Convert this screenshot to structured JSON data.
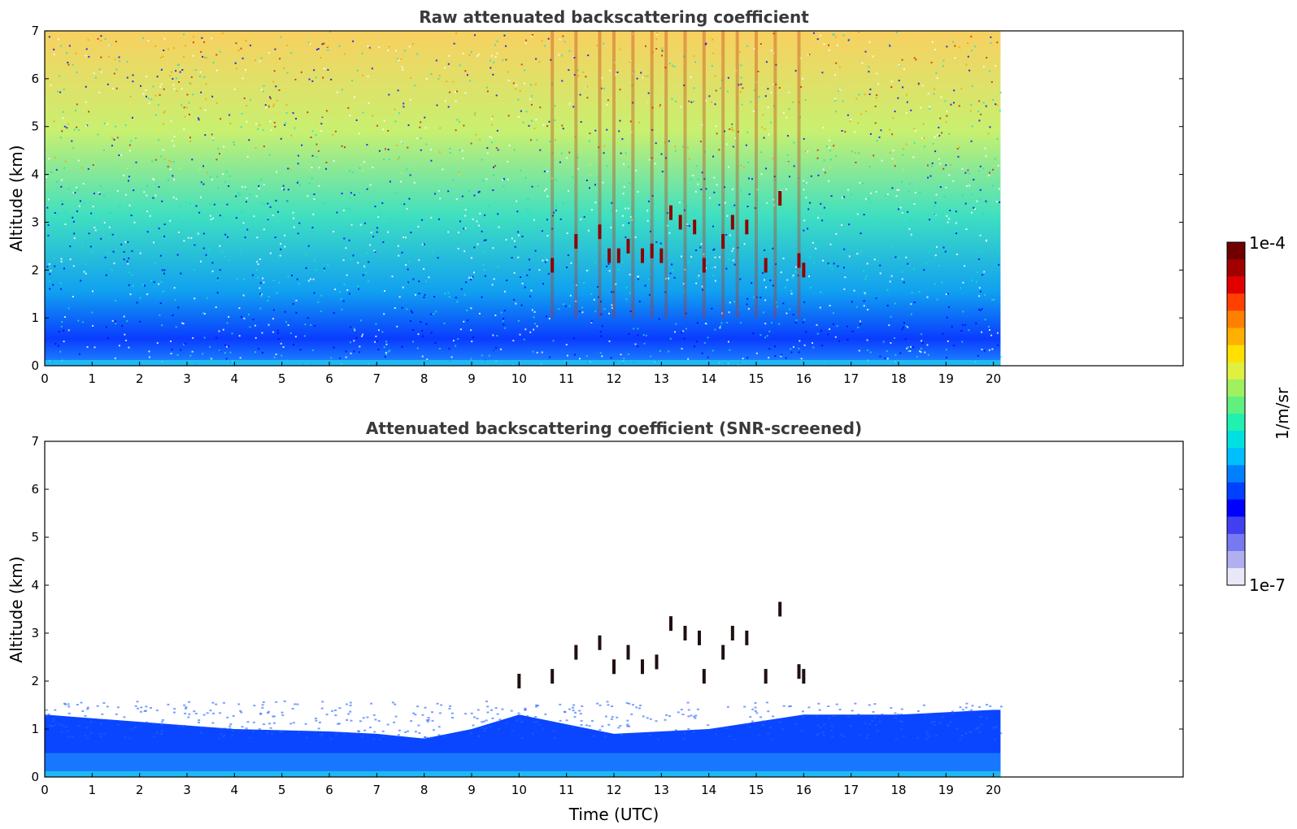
{
  "chart_data": [
    {
      "type": "heatmap",
      "title": "Raw attenuated backscattering coefficient",
      "xlabel": "",
      "ylabel": "Altitude (km)",
      "xlim": [
        0,
        24
      ],
      "ylim": [
        0,
        7
      ],
      "xticks": [
        "0",
        "1",
        "2",
        "3",
        "4",
        "5",
        "6",
        "7",
        "8",
        "9",
        "10",
        "11",
        "12",
        "13",
        "14",
        "15",
        "16",
        "17",
        "18",
        "19",
        "20"
      ],
      "yticks": [
        "0",
        "1",
        "2",
        "3",
        "4",
        "5",
        "6",
        "7"
      ],
      "data_end_time": 20.15,
      "colormap": "jet",
      "screened": false,
      "cloud_features": [
        {
          "t": 10.7,
          "z": 2.1
        },
        {
          "t": 11.2,
          "z": 2.6
        },
        {
          "t": 11.7,
          "z": 2.8
        },
        {
          "t": 11.9,
          "z": 2.3
        },
        {
          "t": 12.1,
          "z": 2.3
        },
        {
          "t": 12.3,
          "z": 2.5
        },
        {
          "t": 12.6,
          "z": 2.3
        },
        {
          "t": 12.8,
          "z": 2.4
        },
        {
          "t": 13.0,
          "z": 2.3
        },
        {
          "t": 13.2,
          "z": 3.2
        },
        {
          "t": 13.4,
          "z": 3.0
        },
        {
          "t": 13.7,
          "z": 2.9
        },
        {
          "t": 13.9,
          "z": 2.1
        },
        {
          "t": 14.3,
          "z": 2.6
        },
        {
          "t": 14.5,
          "z": 3.0
        },
        {
          "t": 14.8,
          "z": 2.9
        },
        {
          "t": 15.2,
          "z": 2.1
        },
        {
          "t": 15.5,
          "z": 3.5
        },
        {
          "t": 15.9,
          "z": 2.2
        },
        {
          "t": 16.0,
          "z": 2.0
        }
      ]
    },
    {
      "type": "heatmap",
      "title": "Attenuated backscattering coefficient (SNR-screened)",
      "xlabel": "Time (UTC)",
      "ylabel": "Altitude (km)",
      "xlim": [
        0,
        24
      ],
      "ylim": [
        0,
        7
      ],
      "xticks": [
        "0",
        "1",
        "2",
        "3",
        "4",
        "5",
        "6",
        "7",
        "8",
        "9",
        "10",
        "11",
        "12",
        "13",
        "14",
        "15",
        "16",
        "17",
        "18",
        "19",
        "20"
      ],
      "yticks": [
        "0",
        "1",
        "2",
        "3",
        "4",
        "5",
        "6",
        "7"
      ],
      "data_end_time": 20.15,
      "colormap": "jet",
      "screened": true,
      "boundary_layer_top": [
        {
          "t": 0,
          "z": 1.3
        },
        {
          "t": 2,
          "z": 1.15
        },
        {
          "t": 4,
          "z": 1.0
        },
        {
          "t": 6,
          "z": 0.95
        },
        {
          "t": 7,
          "z": 0.9
        },
        {
          "t": 8,
          "z": 0.8
        },
        {
          "t": 9,
          "z": 1.0
        },
        {
          "t": 10,
          "z": 1.3
        },
        {
          "t": 12,
          "z": 0.9
        },
        {
          "t": 14,
          "z": 1.0
        },
        {
          "t": 16,
          "z": 1.3
        },
        {
          "t": 18,
          "z": 1.3
        },
        {
          "t": 20,
          "z": 1.4
        }
      ],
      "cloud_features": [
        {
          "t": 10.0,
          "z": 2.0
        },
        {
          "t": 10.7,
          "z": 2.1
        },
        {
          "t": 11.2,
          "z": 2.6
        },
        {
          "t": 11.7,
          "z": 2.8
        },
        {
          "t": 12.0,
          "z": 2.3
        },
        {
          "t": 12.3,
          "z": 2.6
        },
        {
          "t": 12.6,
          "z": 2.3
        },
        {
          "t": 12.9,
          "z": 2.4
        },
        {
          "t": 13.2,
          "z": 3.2
        },
        {
          "t": 13.5,
          "z": 3.0
        },
        {
          "t": 13.8,
          "z": 2.9
        },
        {
          "t": 13.9,
          "z": 2.1
        },
        {
          "t": 14.3,
          "z": 2.6
        },
        {
          "t": 14.5,
          "z": 3.0
        },
        {
          "t": 14.8,
          "z": 2.9
        },
        {
          "t": 15.2,
          "z": 2.1
        },
        {
          "t": 15.5,
          "z": 3.5
        },
        {
          "t": 15.9,
          "z": 2.2
        },
        {
          "t": 16.0,
          "z": 2.1
        }
      ]
    }
  ],
  "colorbar": {
    "label": "1/m/sr",
    "max_label": "1e-4",
    "min_label": "1e-7",
    "colors": [
      "#e8e8f8",
      "#b0b0f0",
      "#7878f0",
      "#4040f0",
      "#0000ff",
      "#0040ff",
      "#0080ff",
      "#00bfff",
      "#00e0e0",
      "#20f0b0",
      "#60f080",
      "#a0f060",
      "#e0f040",
      "#ffe000",
      "#ffb000",
      "#ff8000",
      "#ff4000",
      "#e00000",
      "#a00000",
      "#700000"
    ]
  }
}
